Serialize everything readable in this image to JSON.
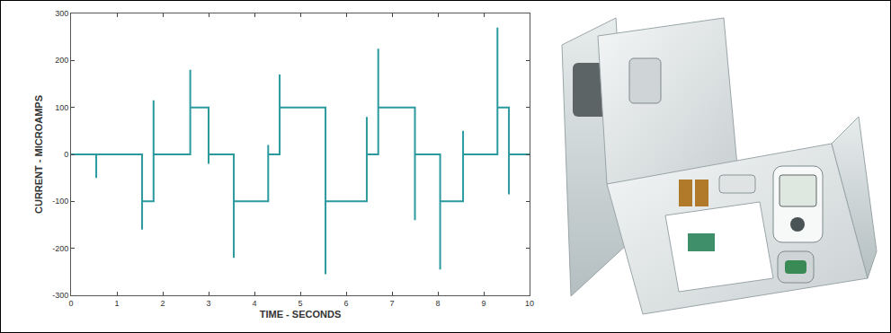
{
  "chart_data": {
    "type": "line",
    "x_label": "TIME - SECONDS",
    "y_label": "CURRENT - MICROAMPS",
    "x": [
      0,
      0.55,
      0.55,
      0.55,
      1.55,
      1.55,
      1.55,
      1.8,
      1.8,
      1.8,
      2.6,
      2.6,
      2.6,
      3.0,
      3.0,
      3.0,
      3.55,
      3.55,
      3.55,
      4.3,
      4.3,
      4.3,
      4.55,
      4.55,
      4.55,
      5.55,
      5.55,
      5.55,
      6.45,
      6.45,
      6.45,
      6.7,
      6.7,
      6.7,
      7.5,
      7.5,
      7.5,
      8.05,
      8.05,
      8.05,
      8.55,
      8.55,
      8.55,
      9.3,
      9.3,
      9.3,
      9.55,
      9.55,
      9.55,
      10
    ],
    "values": [
      0,
      0,
      -50,
      0,
      0,
      -160,
      -100,
      -100,
      115,
      0,
      0,
      180,
      100,
      100,
      -20,
      0,
      0,
      -220,
      -100,
      -100,
      20,
      0,
      0,
      170,
      100,
      100,
      -255,
      -100,
      -100,
      80,
      0,
      0,
      225,
      100,
      100,
      -140,
      0,
      0,
      -245,
      -100,
      -100,
      50,
      0,
      0,
      270,
      100,
      100,
      -85,
      0,
      0
    ],
    "color": "#2a9a9e",
    "xlim": [
      0,
      10
    ],
    "xticks": [
      0,
      1,
      2,
      3,
      4,
      5,
      6,
      7,
      8,
      9,
      10
    ],
    "ylim": [
      -300,
      300
    ],
    "yticks": [
      -300,
      -200,
      -100,
      0,
      100,
      200,
      300
    ],
    "grid": false
  }
}
